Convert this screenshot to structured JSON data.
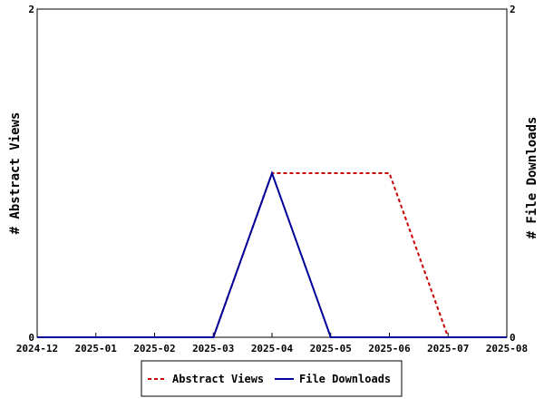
{
  "chart_data": {
    "type": "line",
    "x": [
      "2024-12",
      "2025-01",
      "2025-02",
      "2025-03",
      "2025-04",
      "2025-05",
      "2025-06",
      "2025-07",
      "2025-08"
    ],
    "xlim": [
      "2024-12",
      "2025-08"
    ],
    "y_left": {
      "label": "# Abstract Views",
      "ylim": [
        0,
        2
      ],
      "ticks": [
        "0",
        "2"
      ]
    },
    "y_right": {
      "label": "# File Downloads",
      "ylim": [
        0,
        2
      ],
      "ticks": [
        "0",
        "2"
      ]
    },
    "series": [
      {
        "name": "Abstract Views",
        "axis": "left",
        "color": "#cc0000",
        "dash": "dashed",
        "values": [
          0,
          0,
          0,
          0,
          1,
          1,
          1,
          0,
          0
        ]
      },
      {
        "name": "File Downloads",
        "axis": "right",
        "color": "#000099",
        "dash": "solid",
        "values": [
          0,
          0,
          0,
          0,
          1,
          0,
          0,
          0,
          0
        ]
      }
    ],
    "grid": false,
    "legend": "bottom"
  }
}
